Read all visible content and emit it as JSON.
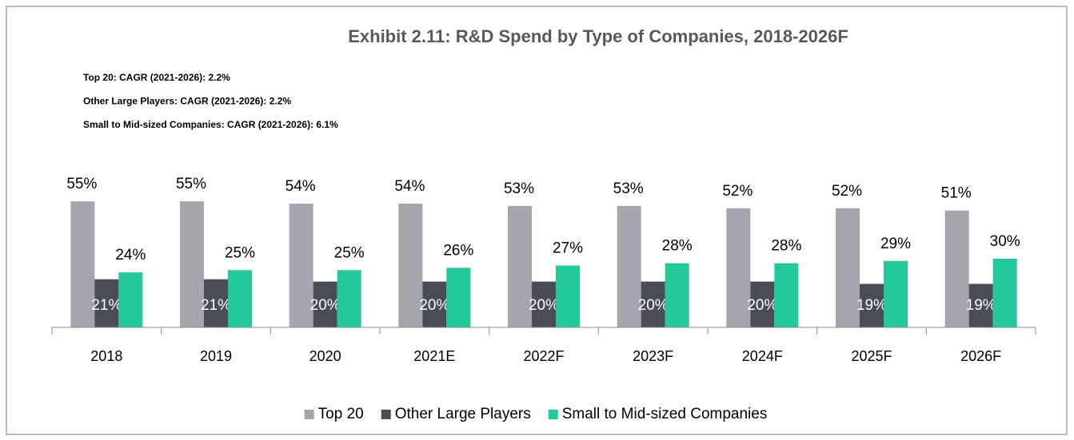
{
  "chart_data": {
    "type": "bar",
    "title": "Exhibit 2.11: R&D Spend by Type of Companies, 2018-2026F",
    "annotations": [
      "Top 20: CAGR (2021-2026): 2.2%",
      "Other Large Players: CAGR (2021-2026): 2.2%",
      "Small to Mid-sized Companies: CAGR (2021-2026): 6.1%"
    ],
    "categories": [
      "2018",
      "2019",
      "2020",
      "2021E",
      "2022F",
      "2023F",
      "2024F",
      "2025F",
      "2026F"
    ],
    "series": [
      {
        "name": "Top 20",
        "color": "#a5a5ad",
        "values": [
          55,
          55,
          54,
          54,
          53,
          53,
          52,
          52,
          51
        ],
        "value_labels": [
          "55%",
          "55%",
          "54%",
          "54%",
          "53%",
          "53%",
          "52%",
          "52%",
          "51%"
        ]
      },
      {
        "name": "Other Large Players",
        "color": "#4a4c57",
        "values": [
          21,
          21,
          20,
          20,
          20,
          20,
          20,
          19,
          19
        ],
        "value_labels": [
          "21%",
          "21%",
          "20%",
          "20%",
          "20%",
          "20%",
          "20%",
          "19%",
          "19%"
        ]
      },
      {
        "name": "Small to Mid-sized Companies",
        "color": "#23c99a",
        "values": [
          24,
          25,
          25,
          26,
          27,
          28,
          28,
          29,
          30
        ],
        "value_labels": [
          "24%",
          "25%",
          "25%",
          "26%",
          "27%",
          "28%",
          "28%",
          "29%",
          "30%"
        ]
      }
    ],
    "legend": "bottom"
  }
}
